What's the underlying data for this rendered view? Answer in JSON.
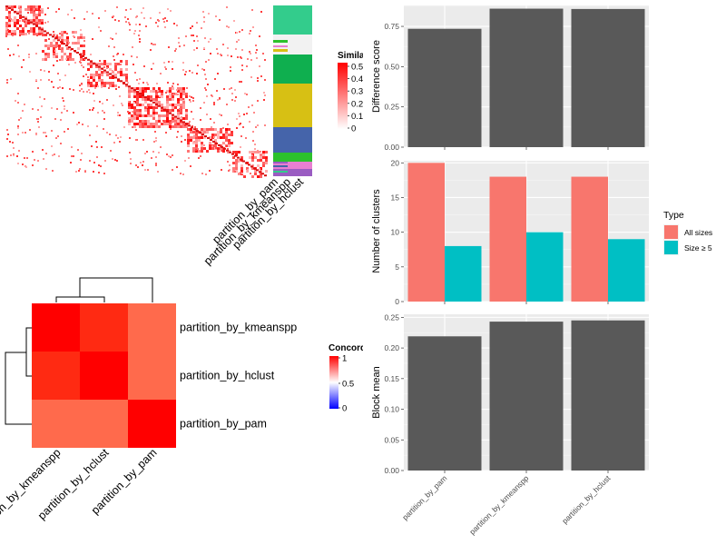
{
  "similarity_legend": {
    "title": "Similarity",
    "ticks": [
      "0.5",
      "0.4",
      "0.3",
      "0.2",
      "0.1",
      "0"
    ],
    "colors": [
      "#ff0000",
      "#ffffff"
    ]
  },
  "partition_bar": {
    "labels": [
      "partition_by_pam",
      "partition_by_kmeanspp",
      "partition_by_hclust"
    ],
    "colors": [
      "#33cc8c",
      "#0faf4f",
      "#d7c014",
      "#4564aa",
      "#2cc12c",
      "#e87fd1",
      "#9a5cc2",
      "#f2f2f2"
    ]
  },
  "concordance_legend": {
    "title": "Concordance",
    "ticks": [
      "1",
      "0.5",
      "0"
    ],
    "colors": [
      "#ff0000",
      "#ffffff",
      "#0000ff"
    ]
  },
  "chart_data": [
    {
      "type": "heatmap",
      "title": "Concordance",
      "rows": [
        "partition_by_kmeanspp",
        "partition_by_hclust",
        "partition_by_pam"
      ],
      "columns": [
        "partition_by_kmeanspp",
        "partition_by_hclust",
        "partition_by_pam"
      ],
      "values": [
        [
          1.0,
          0.9,
          0.65
        ],
        [
          0.9,
          1.0,
          0.65
        ],
        [
          0.65,
          0.65,
          1.0
        ]
      ],
      "color_range": [
        0,
        1
      ]
    },
    {
      "type": "bar",
      "categories": [
        "partition_by_pam",
        "partition_by_kmeanspp",
        "partition_by_hclust"
      ],
      "values": [
        0.735,
        0.86,
        0.858
      ],
      "ylabel": "Difference score",
      "ylim": [
        0,
        0.88
      ],
      "yticks": [
        "0.00",
        "0.25",
        "0.50",
        "0.75"
      ],
      "bar_color": "#595959"
    },
    {
      "type": "bar",
      "categories": [
        "partition_by_pam",
        "partition_by_kmeanspp",
        "partition_by_hclust"
      ],
      "ylabel": "Number of clusters",
      "ylim": [
        0,
        20.3
      ],
      "yticks": [
        "0",
        "5",
        "10",
        "15",
        "20"
      ],
      "legend_title": "Type",
      "legend_position": "right",
      "series": [
        {
          "name": "All sizes",
          "values": [
            20,
            18,
            18
          ],
          "color": "#f8766d"
        },
        {
          "name": "Size ≥ 5",
          "values": [
            8,
            10,
            9
          ],
          "color": "#00bfc4"
        }
      ]
    },
    {
      "type": "bar",
      "categories": [
        "partition_by_pam",
        "partition_by_kmeanspp",
        "partition_by_hclust"
      ],
      "values": [
        0.219,
        0.243,
        0.245
      ],
      "ylabel": "Block mean",
      "ylim": [
        0,
        0.255
      ],
      "yticks": [
        "0.00",
        "0.05",
        "0.10",
        "0.15",
        "0.20",
        "0.25"
      ],
      "bar_color": "#595959"
    }
  ]
}
